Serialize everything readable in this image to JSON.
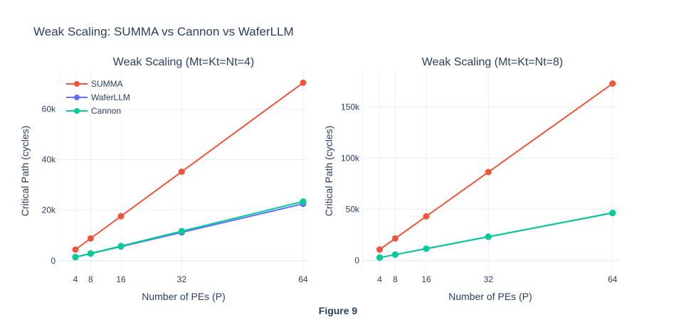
{
  "figure_title": "Weak Scaling: SUMMA vs Cannon vs WaferLLM",
  "caption": "Figure 9",
  "chart_data": [
    {
      "type": "line",
      "title": "Weak Scaling (Mt=Kt=Nt=4)",
      "xlabel": "Number of PEs (P)",
      "ylabel": "Critical Path (cycles)",
      "x": [
        4,
        8,
        16,
        32,
        64
      ],
      "xticks": [
        4,
        8,
        16,
        32,
        64
      ],
      "xtick_labels": [
        "4",
        "8",
        "16",
        "32",
        "64"
      ],
      "xlim": [
        -0.5,
        65.5
      ],
      "ylim": [
        -4000,
        75000
      ],
      "yticks": [
        0,
        20000,
        40000,
        60000
      ],
      "ytick_labels": [
        "0",
        "20k",
        "40k",
        "60k"
      ],
      "grid": true,
      "legend_position": "top-left",
      "series": [
        {
          "name": "SUMMA",
          "color": "#ef553b",
          "values": [
            4400,
            8800,
            17600,
            35200,
            70400
          ]
        },
        {
          "name": "WaferLLM",
          "color": "#636efa",
          "values": [
            1400,
            2800,
            5600,
            11200,
            22500
          ]
        },
        {
          "name": "Cannon",
          "color": "#00cc96",
          "values": [
            1450,
            2900,
            5800,
            11700,
            23400
          ]
        }
      ]
    },
    {
      "type": "line",
      "title": "Weak Scaling (Mt=Kt=Nt=8)",
      "xlabel": "Number of PEs (P)",
      "ylabel": "Critical Path (cycles)",
      "x": [
        4,
        8,
        16,
        32,
        64
      ],
      "xticks": [
        4,
        8,
        16,
        32,
        64
      ],
      "xtick_labels": [
        "4",
        "8",
        "16",
        "32",
        "64"
      ],
      "xlim": [
        -0.5,
        65.5
      ],
      "ylim": [
        -10000,
        185000
      ],
      "yticks": [
        0,
        50000,
        100000,
        150000
      ],
      "ytick_labels": [
        "0",
        "50k",
        "100k",
        "150k"
      ],
      "grid": true,
      "legend_position": "none",
      "series": [
        {
          "name": "SUMMA",
          "color": "#ef553b",
          "values": [
            10800,
            21600,
            43200,
            86400,
            172800
          ]
        },
        {
          "name": "WaferLLM",
          "color": "#636efa",
          "values": [
            2900,
            5800,
            11600,
            23200,
            46400
          ]
        },
        {
          "name": "Cannon",
          "color": "#00cc96",
          "values": [
            2900,
            5800,
            11700,
            23300,
            46600
          ]
        }
      ]
    }
  ]
}
